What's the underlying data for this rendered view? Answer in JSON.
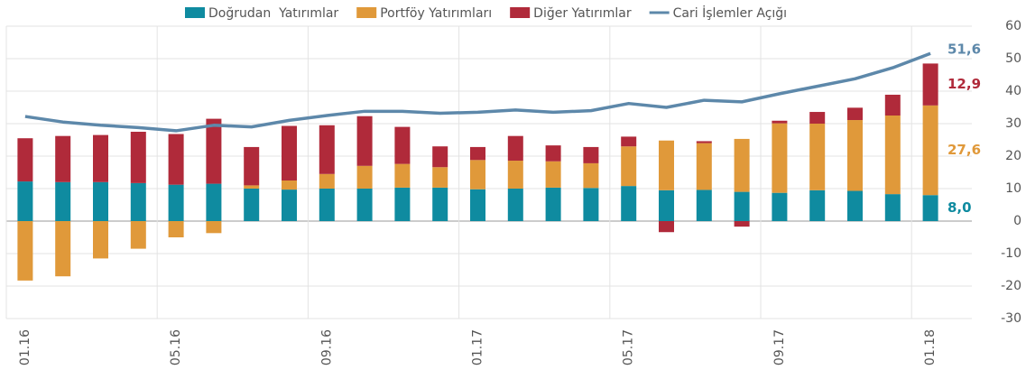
{
  "chart_data": {
    "type": "stacked-bar-line",
    "categories": [
      "01.16",
      null,
      null,
      null,
      "05.16",
      null,
      null,
      null,
      "09.16",
      null,
      null,
      null,
      "01.17",
      null,
      null,
      null,
      "05.17",
      null,
      null,
      null,
      "09.17",
      null,
      null,
      null,
      "01.18"
    ],
    "series": [
      {
        "name": "Doğrudan  Yatırımlar",
        "color": "#0f8ba0",
        "type": "bar",
        "values": [
          12.2,
          12,
          12,
          11.7,
          11.2,
          11.5,
          10,
          9.7,
          10,
          10,
          10.3,
          10.3,
          9.8,
          10,
          10.3,
          10.2,
          10.8,
          9.5,
          9.6,
          9,
          8.7,
          9.5,
          9.3,
          8.3,
          8.0
        ],
        "value_labels": [
          null,
          null,
          null,
          null,
          null,
          null,
          null,
          null,
          null,
          null,
          null,
          null,
          null,
          null,
          null,
          null,
          null,
          null,
          null,
          null,
          null,
          null,
          null,
          null,
          "8,0"
        ]
      },
      {
        "name": "Portföy Yatırımları",
        "color": "#e0993a",
        "type": "bar",
        "values": [
          -18.3,
          -17,
          -11.5,
          -8.5,
          -5,
          -3.7,
          1,
          2.8,
          4.5,
          7,
          7.3,
          6.3,
          9,
          8.6,
          8.1,
          7.6,
          12.2,
          15.3,
          14.4,
          16.3,
          21.4,
          20.5,
          21.8,
          24.2,
          27.6
        ],
        "value_labels": [
          null,
          null,
          null,
          null,
          null,
          null,
          null,
          null,
          null,
          null,
          null,
          null,
          null,
          null,
          null,
          null,
          null,
          null,
          null,
          null,
          null,
          null,
          null,
          null,
          "27,6"
        ]
      },
      {
        "name": "Diğer Yatırımlar",
        "color": "#b02a3a",
        "type": "bar",
        "values": [
          13.3,
          14.2,
          14.5,
          15.8,
          15.6,
          20,
          11.8,
          16.8,
          15,
          15.3,
          11.4,
          6.4,
          4,
          7.6,
          4.9,
          5,
          3,
          -3.4,
          0.6,
          -1.7,
          0.8,
          3.6,
          3.8,
          6.4,
          12.9
        ],
        "value_labels": [
          null,
          null,
          null,
          null,
          null,
          null,
          null,
          null,
          null,
          null,
          null,
          null,
          null,
          null,
          null,
          null,
          null,
          null,
          null,
          null,
          null,
          null,
          null,
          null,
          "12,9"
        ]
      },
      {
        "name": "Cari İşlemler Açığı",
        "color": "#5d88aa",
        "type": "line",
        "values": [
          32.2,
          30.5,
          29.5,
          28.8,
          27.8,
          29.5,
          29,
          31,
          32.5,
          33.8,
          33.8,
          33.2,
          33.5,
          34.2,
          33.5,
          34,
          36.2,
          35,
          37.2,
          36.7,
          39.2,
          41.5,
          43.8,
          47.2,
          51.6
        ],
        "value_labels": [
          null,
          null,
          null,
          null,
          null,
          null,
          null,
          null,
          null,
          null,
          null,
          null,
          null,
          null,
          null,
          null,
          null,
          null,
          null,
          null,
          null,
          null,
          null,
          null,
          "51,6"
        ]
      }
    ],
    "ylim": [
      -30,
      60
    ],
    "yticks": [
      -30,
      -20,
      -10,
      0,
      10,
      20,
      30,
      40,
      50,
      60
    ],
    "grid": true,
    "legend": "top"
  }
}
